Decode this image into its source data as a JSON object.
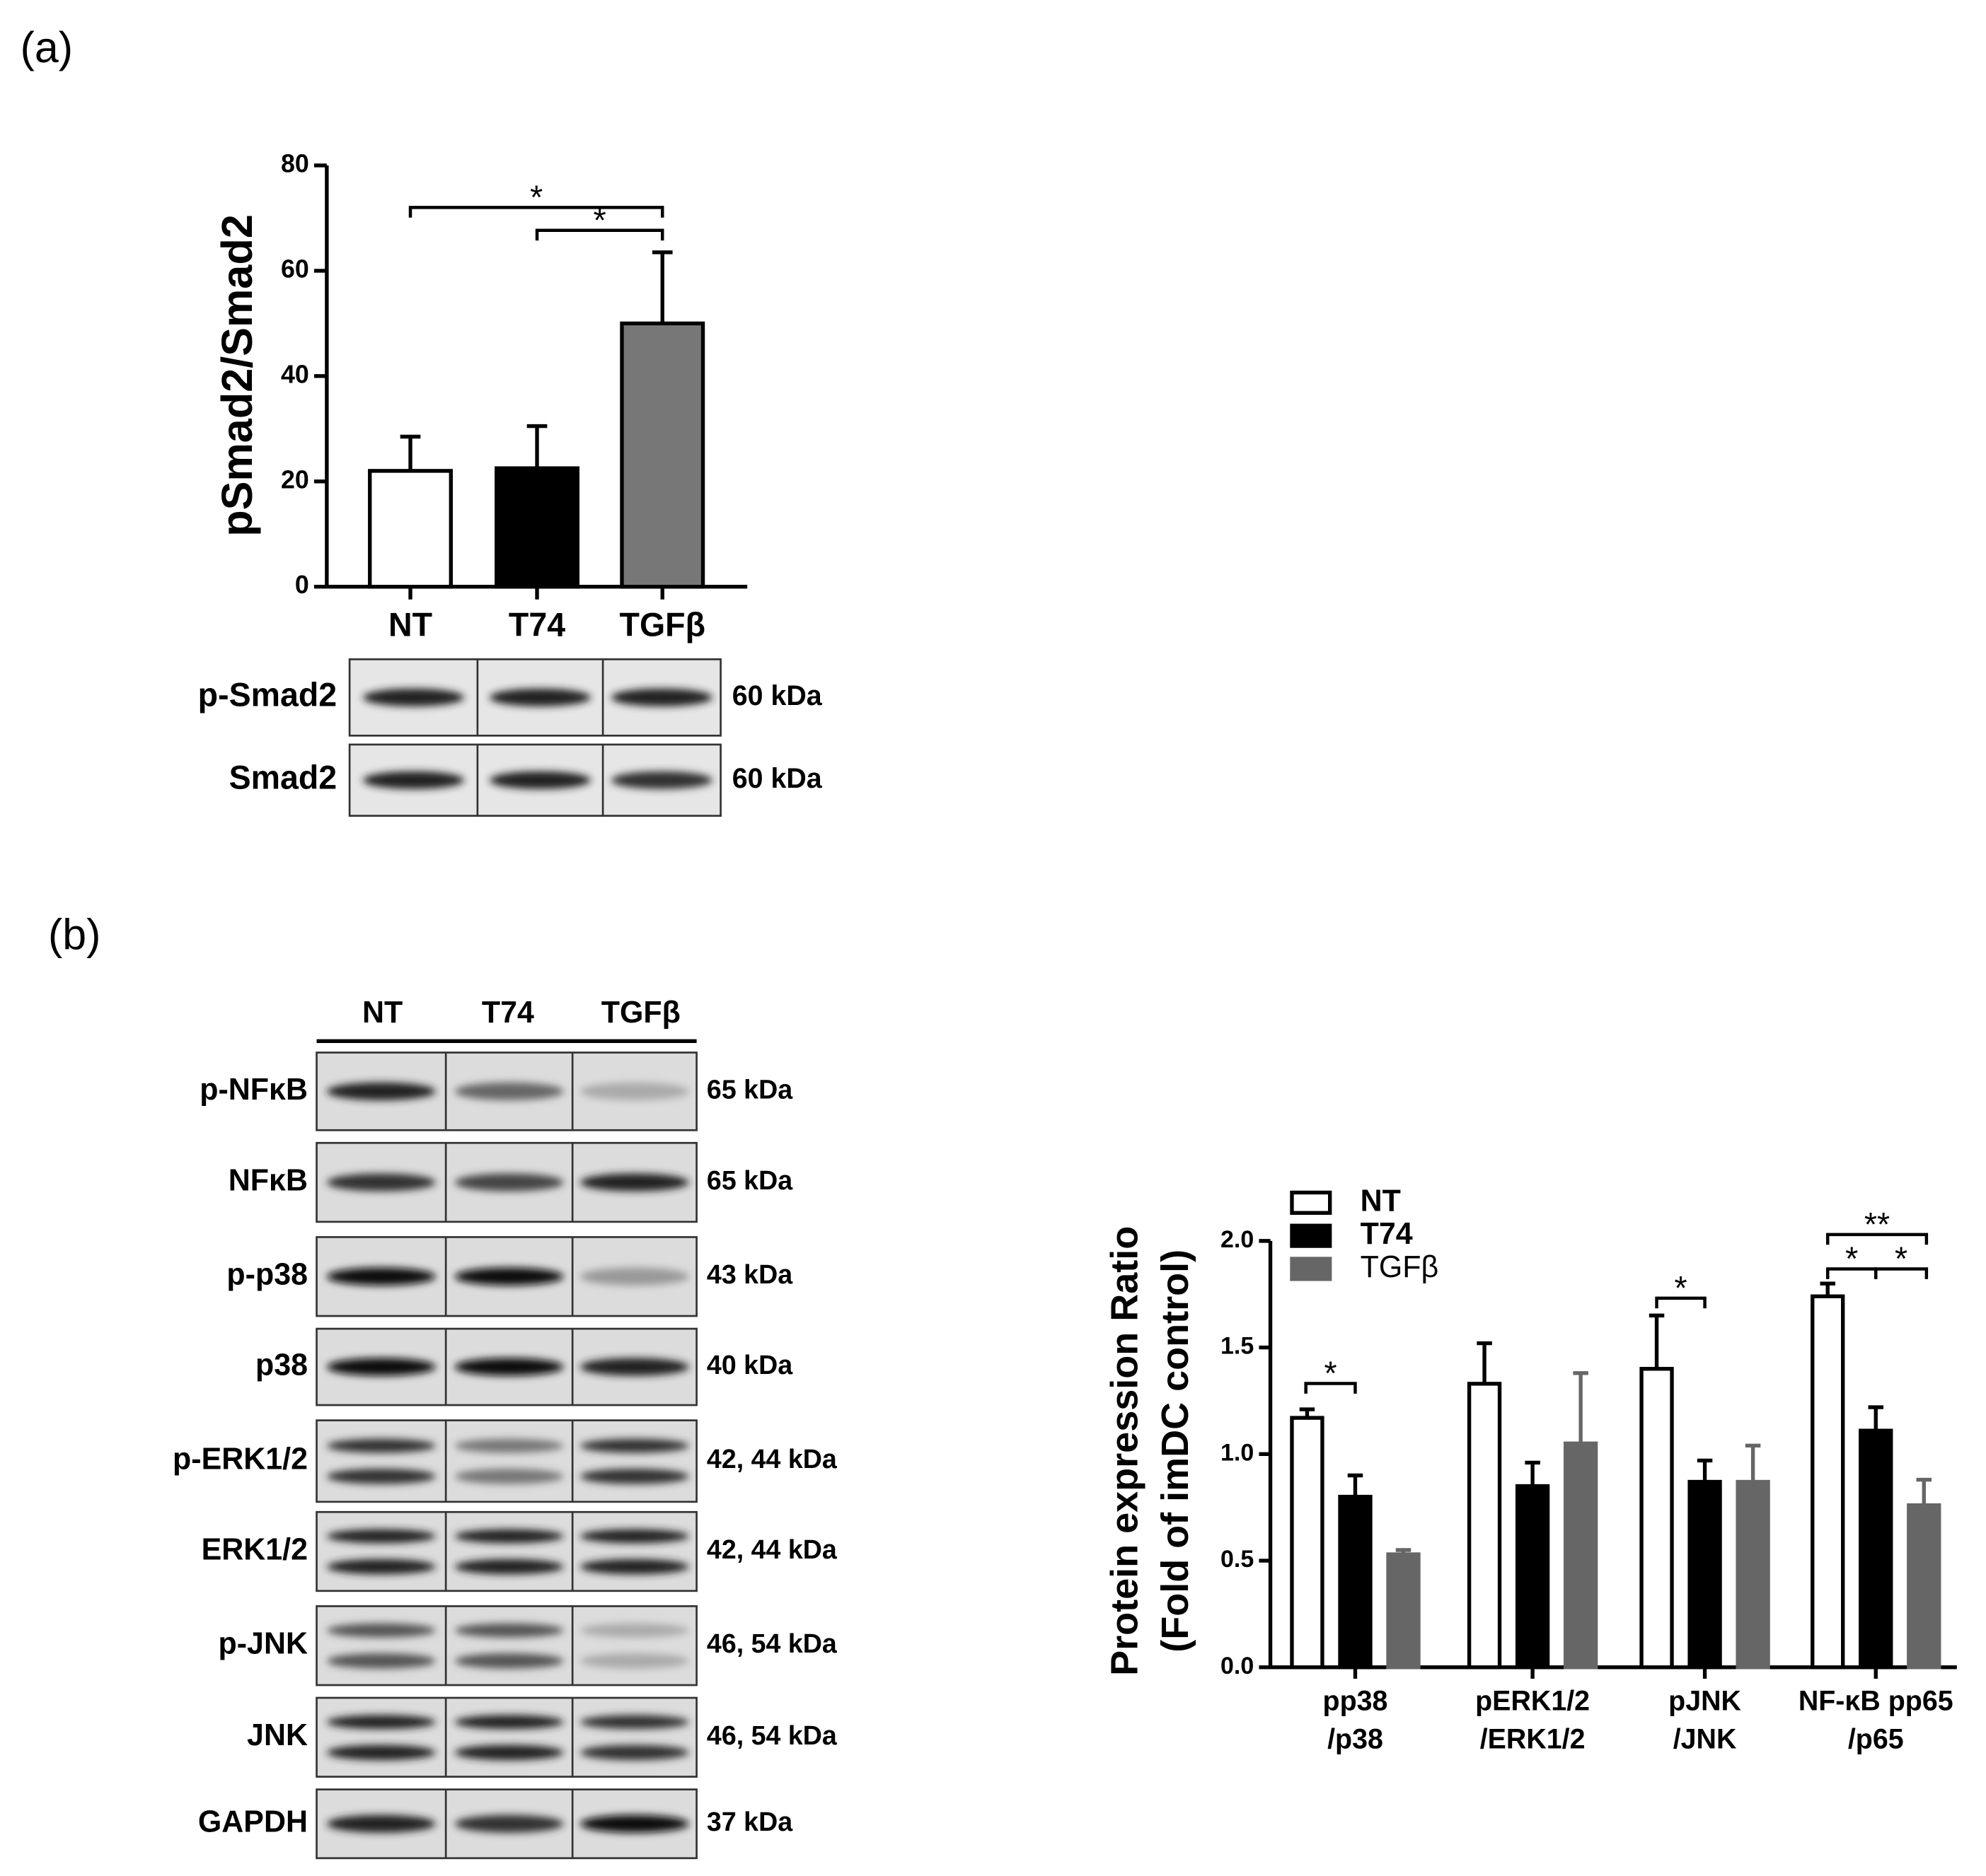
{
  "panel_labels": [
    "(a)",
    "(b)"
  ],
  "chart_data": [
    {
      "type": "bar",
      "y_label": "pSmad2/Smad2",
      "categories": [
        "NT",
        "T74",
        "TGFβ"
      ],
      "values": [
        22,
        22.5,
        50
      ],
      "errors": [
        6.5,
        8,
        13.5
      ],
      "colors": [
        "#ffffff",
        "#000000",
        "#777777"
      ],
      "ylim": [
        0,
        80
      ],
      "yticks": [
        0,
        20,
        40,
        60,
        80
      ],
      "annotations": [
        "*",
        "*"
      ]
    },
    {
      "type": "grouped-bar",
      "y_label": [
        "Protein expression Ratio",
        "(Fold of imDC control)"
      ],
      "categories": [
        [
          "pp38",
          "/p38"
        ],
        [
          "pERK1/2",
          "/ERK1/2"
        ],
        [
          "pJNK",
          "/JNK"
        ],
        [
          "NF-κB pp65",
          "/p65"
        ]
      ],
      "series": [
        {
          "name": "NT",
          "color": "#ffffff",
          "values": [
            1.17,
            1.33,
            1.4,
            1.74
          ],
          "errors": [
            0.04,
            0.19,
            0.25,
            0.06
          ]
        },
        {
          "name": "T74",
          "color": "#000000",
          "values": [
            0.8,
            0.85,
            0.87,
            1.11
          ],
          "errors": [
            0.1,
            0.11,
            0.1,
            0.11
          ]
        },
        {
          "name": "TGFβ",
          "color": "#666666",
          "values": [
            0.53,
            1.05,
            0.87,
            0.76
          ],
          "errors": [
            0.02,
            0.33,
            0.17,
            0.12
          ]
        }
      ],
      "ylim": [
        0,
        2.0
      ],
      "yticks": [
        {
          "value": 0,
          "label": "0.0"
        },
        0.5,
        {
          "value": 1,
          "label": "1.0"
        },
        1.5,
        {
          "value": 2,
          "label": "2.0"
        }
      ],
      "legend": "top-left",
      "annotations": [
        "*",
        "*",
        "*",
        "*",
        "**"
      ]
    }
  ],
  "blots_a": {
    "rows": [
      {
        "protein": "p-Smad2",
        "size": "60 kDa"
      },
      {
        "protein": "Smad2",
        "size": "60 kDa"
      }
    ]
  },
  "blots_b": {
    "lanes": [
      "NT",
      "T74",
      "TGFβ"
    ],
    "rows": [
      {
        "protein": "p-NFκB",
        "size": "65 kDa"
      },
      {
        "protein": "NFκB",
        "size": "65 kDa"
      },
      {
        "protein": "p-p38",
        "size": "43 kDa"
      },
      {
        "protein": "p38",
        "size": "40 kDa"
      },
      {
        "protein": "p-ERK1/2",
        "size": "42, 44 kDa"
      },
      {
        "protein": "ERK1/2",
        "size": "42, 44 kDa"
      },
      {
        "protein": "p-JNK",
        "size": "46, 54 kDa"
      },
      {
        "protein": "JNK",
        "size": "46, 54 kDa"
      },
      {
        "protein": "GAPDH",
        "size": "37 kDa"
      }
    ]
  }
}
